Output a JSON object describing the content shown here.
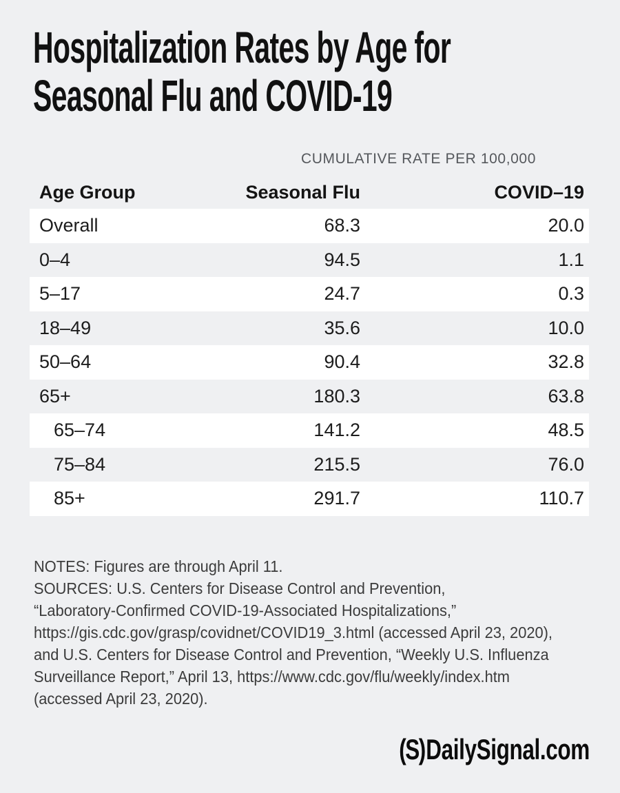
{
  "page": {
    "background_color": "#eff0f2",
    "stripe_color": "#ffffff",
    "text_color": "#1c1c1c",
    "muted_color": "#55585c"
  },
  "title": {
    "line1": "Hospitalization Rates by Age for",
    "line2": "Seasonal Flu and COVID-19"
  },
  "table": {
    "kicker": "CUMULATIVE RATE PER 100,000",
    "columns": {
      "age_group": "Age Group",
      "seasonal_flu": "Seasonal Flu",
      "covid19": "COVID–19"
    },
    "rows": [
      {
        "age_group": "Overall",
        "seasonal_flu": "68.3",
        "covid19": "20.0",
        "indent": false
      },
      {
        "age_group": "0–4",
        "seasonal_flu": "94.5",
        "covid19": "1.1",
        "indent": false
      },
      {
        "age_group": "5–17",
        "seasonal_flu": "24.7",
        "covid19": "0.3",
        "indent": false
      },
      {
        "age_group": "18–49",
        "seasonal_flu": "35.6",
        "covid19": "10.0",
        "indent": false
      },
      {
        "age_group": "50–64",
        "seasonal_flu": "90.4",
        "covid19": "32.8",
        "indent": false
      },
      {
        "age_group": "65+",
        "seasonal_flu": "180.3",
        "covid19": "63.8",
        "indent": false
      },
      {
        "age_group": "65–74",
        "seasonal_flu": "141.2",
        "covid19": "48.5",
        "indent": true
      },
      {
        "age_group": "75–84",
        "seasonal_flu": "215.5",
        "covid19": "76.0",
        "indent": true
      },
      {
        "age_group": "85+",
        "seasonal_flu": "291.7",
        "covid19": "110.7",
        "indent": true
      }
    ]
  },
  "notes": {
    "lines": [
      "NOTES: Figures are through April 11.",
      "SOURCES: U.S. Centers for Disease Control and Prevention,",
      "“Laboratory-Confirmed COVID-19-Associated Hospitalizations,”",
      "https://gis.cdc.gov/grasp/covidnet/COVID19_3.html (accessed April 23, 2020),",
      "and U.S. Centers for Disease Control and Prevention, “Weekly U.S. Influenza",
      "Surveillance Report,” April 13, https://www.cdc.gov/flu/weekly/index.htm",
      "(accessed April 23, 2020)."
    ]
  },
  "footer": {
    "logo_mark": "(S)",
    "logo_text": "DailySignal.com"
  },
  "chart_data": {
    "type": "table",
    "title": "Hospitalization Rates by Age for Seasonal Flu and COVID-19",
    "subtitle": "CUMULATIVE RATE PER 100,000",
    "columns": [
      "Age Group",
      "Seasonal Flu",
      "COVID–19"
    ],
    "rows": [
      [
        "Overall",
        68.3,
        20.0
      ],
      [
        "0–4",
        94.5,
        1.1
      ],
      [
        "5–17",
        24.7,
        0.3
      ],
      [
        "18–49",
        35.6,
        10.0
      ],
      [
        "50–64",
        90.4,
        32.8
      ],
      [
        "65+",
        180.3,
        63.8
      ],
      [
        "65–74",
        141.2,
        48.5
      ],
      [
        "75–84",
        215.5,
        76.0
      ],
      [
        "85+",
        291.7,
        110.7
      ]
    ],
    "subgroup_rows": [
      "65–74",
      "75–84",
      "85+"
    ],
    "notes": "Figures are through April 11.",
    "sources": "U.S. Centers for Disease Control and Prevention, “Laboratory-Confirmed COVID-19-Associated Hospitalizations,” https://gis.cdc.gov/grasp/covidnet/COVID19_3.html (accessed April 23, 2020), and U.S. Centers for Disease Control and Prevention, “Weekly U.S. Influenza Surveillance Report,” April 13, https://www.cdc.gov/flu/weekly/index.htm (accessed April 23, 2020)."
  }
}
